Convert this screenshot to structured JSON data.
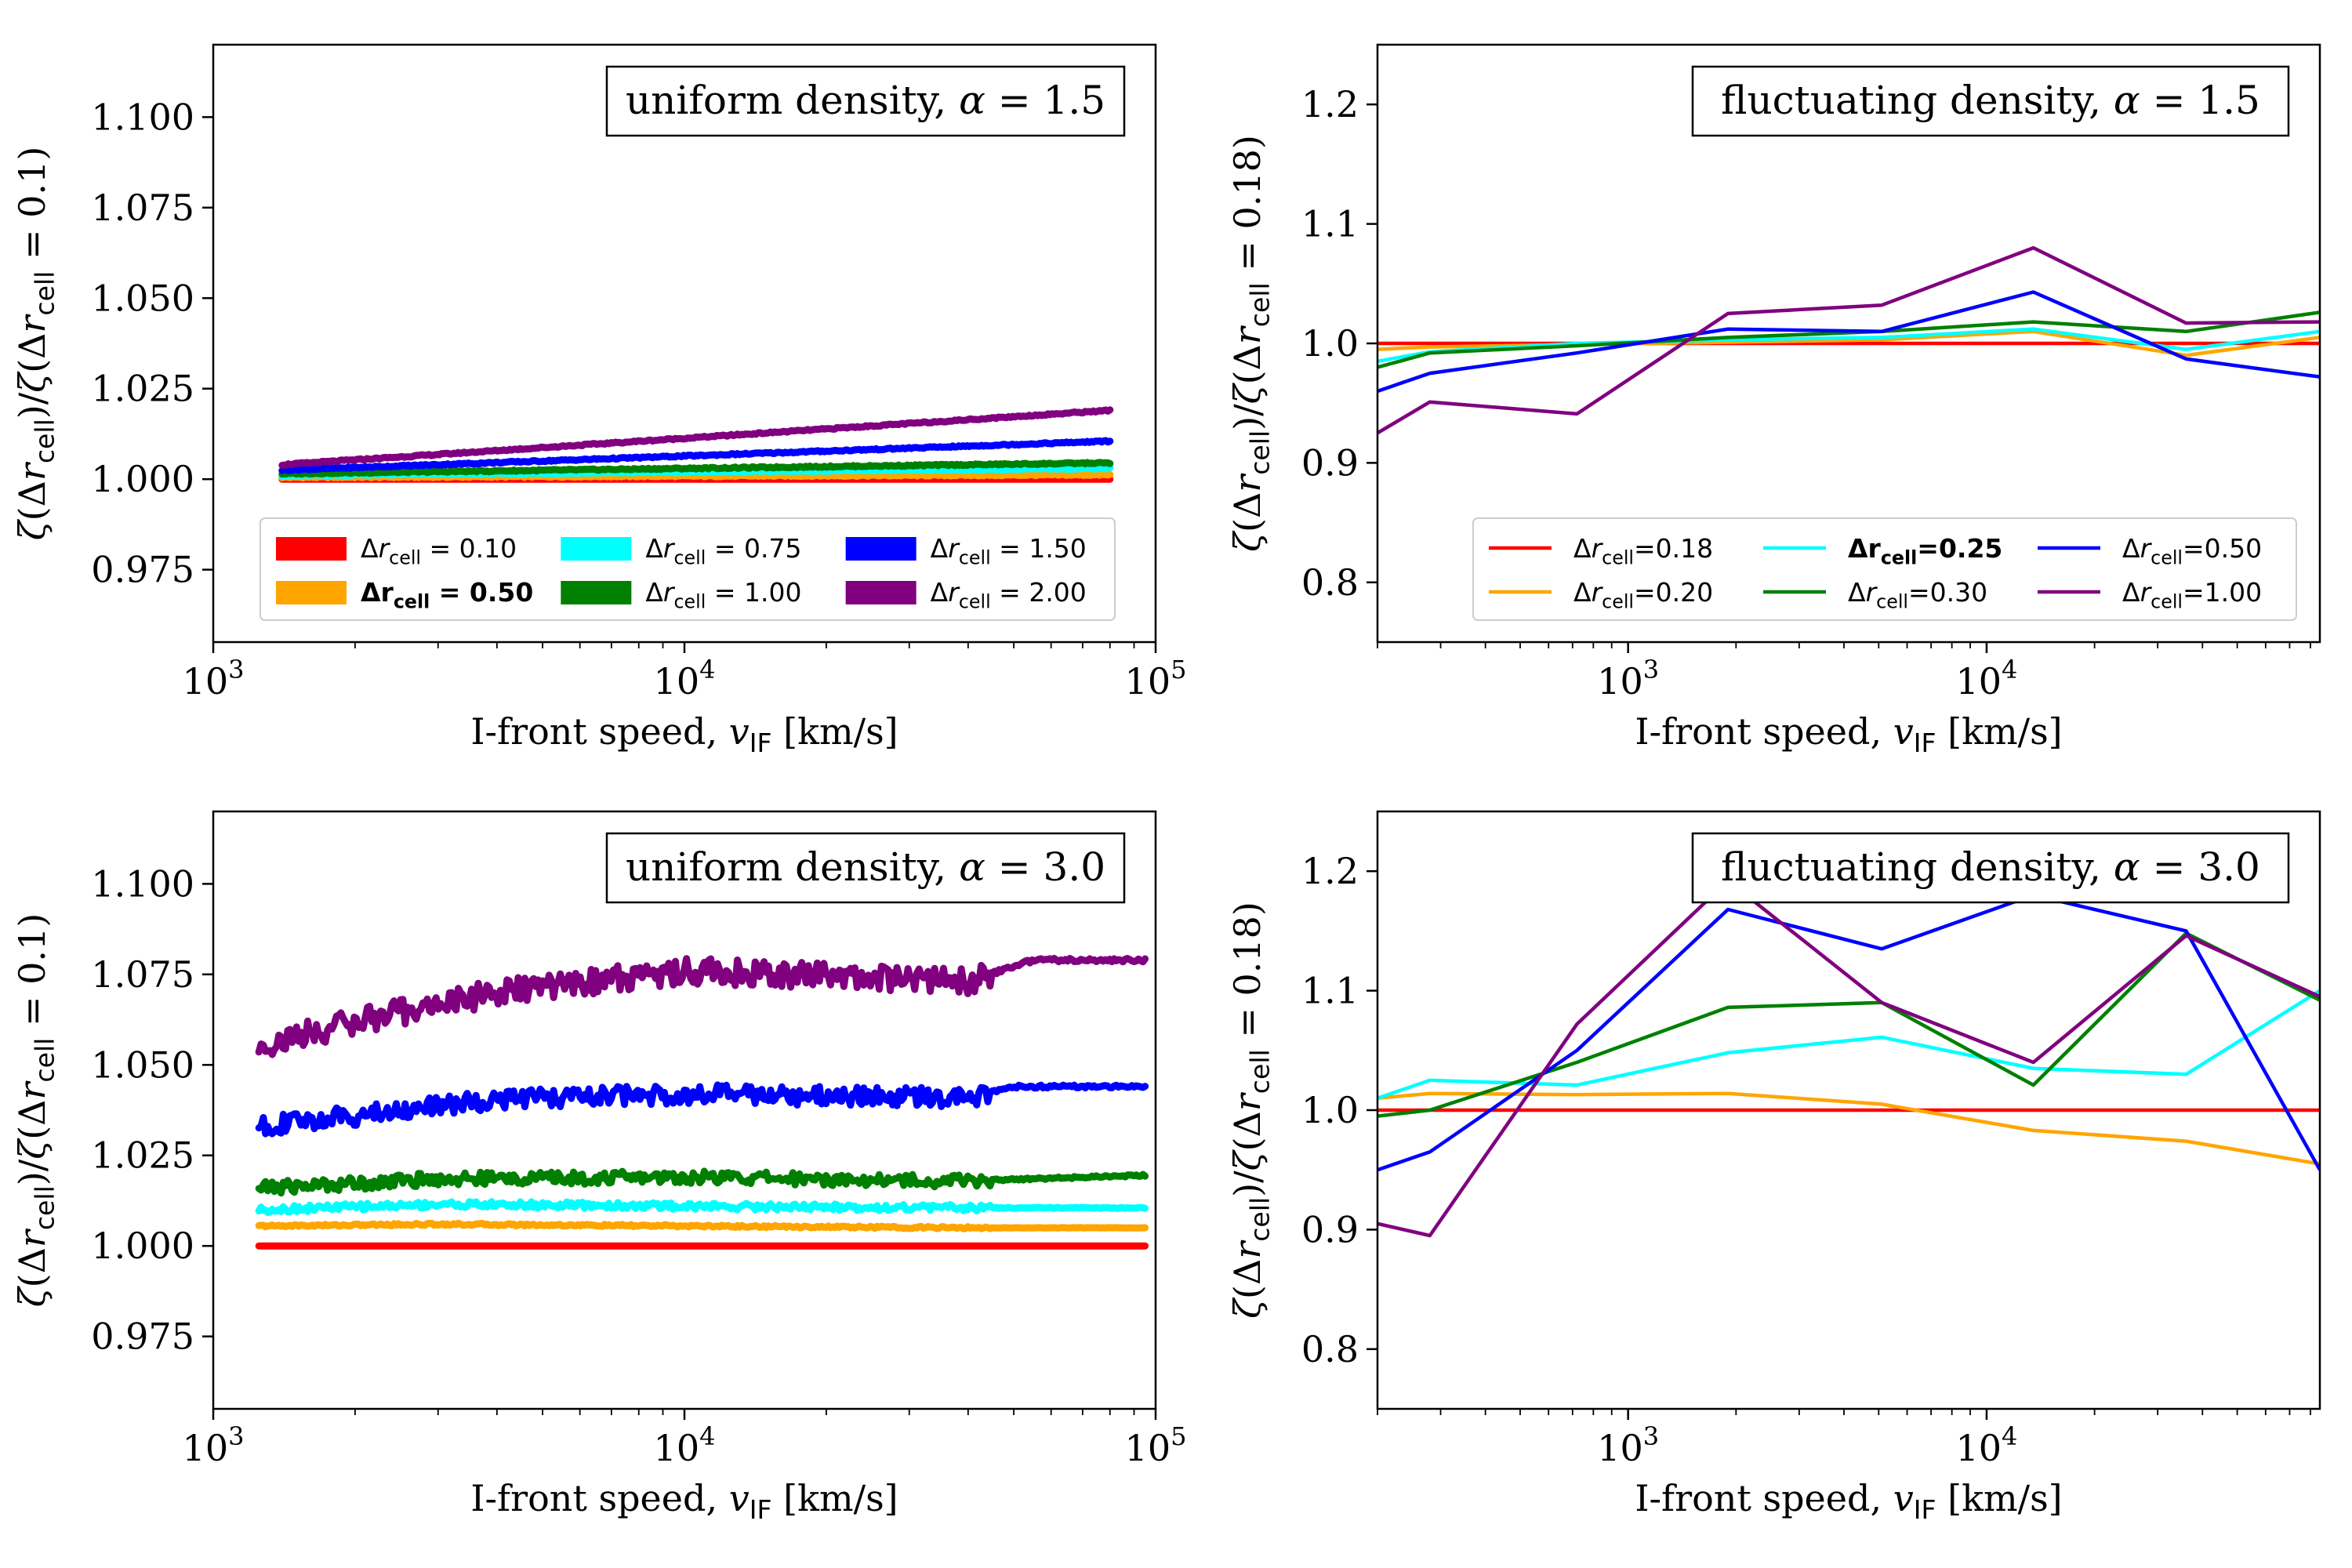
{
  "chart_data": [
    {
      "type": "line",
      "panel": "top-left",
      "title": "uniform density, α = 1.5",
      "xlabel": "I-front speed, v_IF [km/s]",
      "ylabel": "ζ(Δr_cell)/ζ(Δr_cell = 0.1)",
      "xscale": "log",
      "xlim": [
        1000,
        100000
      ],
      "ylim": [
        0.955,
        1.12
      ],
      "yticks": [
        "0.975",
        "1.000",
        "1.025",
        "1.050",
        "1.075",
        "1.100"
      ],
      "xticks": [
        "10^3",
        "10^4",
        "10^5"
      ],
      "legend_location": "lower-center",
      "legend_style": "thick-patch",
      "series": [
        {
          "name": "Δr_cell = 0.10",
          "color": "#ff0000",
          "x": [
            1400,
            80000
          ],
          "values": [
            1.0,
            1.0
          ]
        },
        {
          "name": "Δr_cell = 0.50",
          "bold": true,
          "color": "#ffa500",
          "x": [
            1400,
            80000
          ],
          "values": [
            1.0005,
            1.0012
          ]
        },
        {
          "name": "Δr_cell = 0.75",
          "color": "#00ffff",
          "x": [
            1400,
            80000
          ],
          "values": [
            1.001,
            1.003
          ]
        },
        {
          "name": "Δr_cell = 1.00",
          "color": "#008000",
          "x": [
            1400,
            80000
          ],
          "values": [
            1.0015,
            1.0045
          ]
        },
        {
          "name": "Δr_cell = 1.50",
          "color": "#0000ff",
          "x": [
            1400,
            80000
          ],
          "values": [
            1.0025,
            1.0105
          ]
        },
        {
          "name": "Δr_cell = 2.00",
          "color": "#800080",
          "x": [
            1400,
            80000
          ],
          "values": [
            1.004,
            1.019
          ]
        }
      ]
    },
    {
      "type": "line",
      "panel": "top-right",
      "title": "fluctuating density, α = 1.5",
      "xlabel": "I-front speed, v_IF [km/s]",
      "ylabel": "ζ(Δr_cell)/ζ(Δr_cell = 0.18)",
      "xscale": "log",
      "xlim": [
        200,
        85000
      ],
      "ylim": [
        0.75,
        1.25
      ],
      "yticks": [
        "0.8",
        "0.9",
        "1.0",
        "1.1",
        "1.2"
      ],
      "xticks": [
        "10^3",
        "10^4"
      ],
      "legend_location": "lower-right",
      "legend_style": "line",
      "x": [
        200,
        280,
        720,
        1900,
        5100,
        13500,
        36000,
        85000
      ],
      "series": [
        {
          "name": "Δr_cell=0.18",
          "color": "#ff0000",
          "values": [
            1.0,
            1.0,
            1.0,
            1.0,
            1.0,
            1.0,
            1.0,
            1.0
          ]
        },
        {
          "name": "Δr_cell=0.20",
          "color": "#ffa500",
          "values": [
            0.995,
            0.997,
            0.999,
            1.001,
            1.003,
            1.01,
            0.99,
            1.005
          ]
        },
        {
          "name": "Δr_cell=0.25",
          "bold": true,
          "color": "#00ffff",
          "values": [
            0.985,
            0.993,
            1.0,
            1.003,
            1.005,
            1.012,
            0.995,
            1.01
          ]
        },
        {
          "name": "Δr_cell=0.30",
          "color": "#008000",
          "values": [
            0.98,
            0.992,
            0.998,
            1.005,
            1.01,
            1.018,
            1.01,
            1.026
          ]
        },
        {
          "name": "Δr_cell=0.50",
          "color": "#0000ff",
          "values": [
            0.96,
            0.975,
            0.992,
            1.012,
            1.01,
            1.043,
            0.987,
            0.972
          ]
        },
        {
          "name": "Δr_cell=1.00",
          "color": "#800080",
          "values": [
            0.925,
            0.951,
            0.941,
            1.025,
            1.032,
            1.08,
            1.017,
            1.018
          ]
        }
      ]
    },
    {
      "type": "line",
      "panel": "bottom-left",
      "title": "uniform density, α = 3.0",
      "xlabel": "I-front speed, v_IF [km/s]",
      "ylabel": "ζ(Δr_cell)/ζ(Δr_cell = 0.1)",
      "xscale": "log",
      "xlim": [
        1000,
        100000
      ],
      "ylim": [
        0.955,
        1.12
      ],
      "yticks": [
        "0.975",
        "1.000",
        "1.025",
        "1.050",
        "1.075",
        "1.100"
      ],
      "xticks": [
        "10^3",
        "10^4",
        "10^5"
      ],
      "series": [
        {
          "name": "Δr_cell = 0.10",
          "color": "#ff0000",
          "x": [
            1250,
            95000
          ],
          "values": [
            1.0,
            1.0
          ]
        },
        {
          "name": "Δr_cell = 0.50",
          "color": "#ffa500",
          "x": [
            1250,
            3000,
            10000,
            40000,
            95000
          ],
          "values": [
            1.0055,
            1.006,
            1.0055,
            1.005,
            1.005
          ]
        },
        {
          "name": "Δr_cell = 0.75",
          "color": "#00ffff",
          "x": [
            1250,
            3000,
            10000,
            40000,
            95000
          ],
          "values": [
            1.01,
            1.0115,
            1.011,
            1.0105,
            1.0105
          ]
        },
        {
          "name": "Δr_cell = 1.00",
          "color": "#008000",
          "x": [
            1250,
            3000,
            10000,
            40000,
            95000
          ],
          "values": [
            1.016,
            1.0185,
            1.019,
            1.018,
            1.0195
          ]
        },
        {
          "name": "Δr_cell = 1.50",
          "color": "#0000ff",
          "x": [
            1250,
            2000,
            4000,
            10000,
            40000,
            50000,
            95000
          ],
          "values": [
            1.033,
            1.036,
            1.0405,
            1.042,
            1.041,
            1.044,
            1.044
          ]
        },
        {
          "name": "Δr_cell = 2.00",
          "color": "#800080",
          "x": [
            1250,
            2000,
            4000,
            10000,
            40000,
            55000,
            95000
          ],
          "values": [
            1.055,
            1.062,
            1.07,
            1.076,
            1.073,
            1.079,
            1.079
          ]
        }
      ]
    },
    {
      "type": "line",
      "panel": "bottom-right",
      "title": "fluctuating density, α = 3.0",
      "xlabel": "I-front speed, v_IF [km/s]",
      "ylabel": "ζ(Δr_cell)/ζ(Δr_cell = 0.18)",
      "xscale": "log",
      "xlim": [
        200,
        85000
      ],
      "ylim": [
        0.75,
        1.25
      ],
      "yticks": [
        "0.8",
        "0.9",
        "1.0",
        "1.1",
        "1.2"
      ],
      "xticks": [
        "10^3",
        "10^4"
      ],
      "x": [
        200,
        280,
        720,
        1900,
        5100,
        13500,
        36000,
        85000
      ],
      "series": [
        {
          "name": "Δr_cell=0.18",
          "color": "#ff0000",
          "values": [
            1.0,
            1.0,
            1.0,
            1.0,
            1.0,
            1.0,
            1.0,
            1.0
          ]
        },
        {
          "name": "Δr_cell=0.20",
          "color": "#ffa500",
          "values": [
            1.01,
            1.014,
            1.013,
            1.014,
            1.005,
            0.983,
            0.974,
            0.955
          ]
        },
        {
          "name": "Δr_cell=0.25",
          "color": "#00ffff",
          "values": [
            1.01,
            1.025,
            1.021,
            1.048,
            1.061,
            1.035,
            1.03,
            1.1
          ]
        },
        {
          "name": "Δr_cell=0.30",
          "color": "#008000",
          "values": [
            0.995,
            1.0,
            1.04,
            1.086,
            1.09,
            1.021,
            1.148,
            1.092
          ]
        },
        {
          "name": "Δr_cell=0.50",
          "color": "#0000ff",
          "values": [
            0.95,
            0.965,
            1.05,
            1.168,
            1.135,
            1.18,
            1.15,
            0.95
          ]
        },
        {
          "name": "Δr_cell=1.00",
          "color": "#800080",
          "values": [
            0.905,
            0.895,
            1.072,
            1.192,
            1.09,
            1.04,
            1.146,
            1.095
          ]
        }
      ]
    }
  ]
}
